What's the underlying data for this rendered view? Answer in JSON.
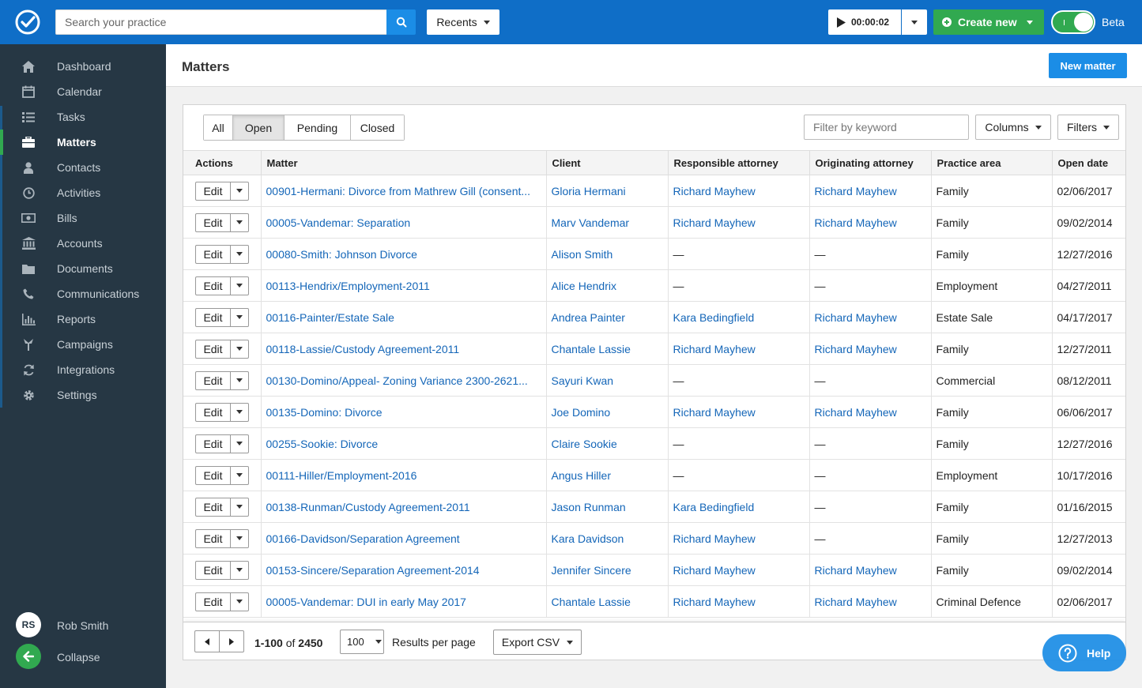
{
  "topbar": {
    "search_placeholder": "Search your practice",
    "recents_label": "Recents",
    "timer_value": "00:00:02",
    "create_label": "Create new",
    "beta_label": "Beta",
    "accent_color": "#0f6ec7"
  },
  "sidebar": {
    "items": [
      {
        "label": "Dashboard",
        "icon": "home-icon"
      },
      {
        "label": "Calendar",
        "icon": "calendar-icon"
      },
      {
        "label": "Tasks",
        "icon": "list-icon"
      },
      {
        "label": "Matters",
        "icon": "briefcase-icon",
        "active": true
      },
      {
        "label": "Contacts",
        "icon": "person-icon"
      },
      {
        "label": "Activities",
        "icon": "clock-icon"
      },
      {
        "label": "Bills",
        "icon": "money-icon"
      },
      {
        "label": "Accounts",
        "icon": "bank-icon"
      },
      {
        "label": "Documents",
        "icon": "folder-icon"
      },
      {
        "label": "Communications",
        "icon": "phone-icon"
      },
      {
        "label": "Reports",
        "icon": "bar-chart-icon"
      },
      {
        "label": "Campaigns",
        "icon": "campaign-icon"
      },
      {
        "label": "Integrations",
        "icon": "refresh-icon"
      },
      {
        "label": "Settings",
        "icon": "gear-icon"
      }
    ],
    "user_initials": "RS",
    "user_name": "Rob Smith",
    "collapse_label": "Collapse"
  },
  "header": {
    "title": "Matters",
    "new_matter_label": "New matter"
  },
  "filters": {
    "tabs": [
      "All",
      "Open",
      "Pending",
      "Closed"
    ],
    "active_tab": "Open",
    "keyword_placeholder": "Filter by keyword",
    "columns_label": "Columns",
    "filters_label": "Filters"
  },
  "table": {
    "headers": [
      "Actions",
      "Matter",
      "Client",
      "Responsible attorney",
      "Originating attorney",
      "Practice area",
      "Open date"
    ],
    "edit_label": "Edit",
    "rows": [
      {
        "matter": "00901-Hermani: Divorce from Mathrew Gill (consent...",
        "client": "Gloria Hermani",
        "responsible": "Richard Mayhew",
        "originating": "Richard Mayhew",
        "area": "Family",
        "date": "02/06/2017"
      },
      {
        "matter": "00005-Vandemar: Separation",
        "client": "Marv Vandemar",
        "responsible": "Richard Mayhew",
        "originating": "Richard Mayhew",
        "area": "Family",
        "date": "09/02/2014"
      },
      {
        "matter": "00080-Smith: Johnson Divorce",
        "client": "Alison Smith",
        "responsible": "—",
        "originating": "—",
        "area": "Family",
        "date": "12/27/2016"
      },
      {
        "matter": "00113-Hendrix/Employment-2011",
        "client": "Alice Hendrix",
        "responsible": "—",
        "originating": "—",
        "area": "Employment",
        "date": "04/27/2011"
      },
      {
        "matter": "00116-Painter/Estate Sale",
        "client": "Andrea Painter",
        "responsible": "Kara Bedingfield",
        "originating": "Richard Mayhew",
        "area": "Estate Sale",
        "date": "04/17/2017"
      },
      {
        "matter": "00118-Lassie/Custody Agreement-2011",
        "client": "Chantale Lassie",
        "responsible": "Richard Mayhew",
        "originating": "Richard Mayhew",
        "area": "Family",
        "date": "12/27/2011"
      },
      {
        "matter": "00130-Domino/Appeal- Zoning Variance 2300-2621...",
        "client": "Sayuri Kwan",
        "responsible": "—",
        "originating": "—",
        "area": "Commercial",
        "date": "08/12/2011"
      },
      {
        "matter": "00135-Domino: Divorce",
        "client": "Joe Domino",
        "responsible": "Richard Mayhew",
        "originating": "Richard Mayhew",
        "area": "Family",
        "date": "06/06/2017"
      },
      {
        "matter": "00255-Sookie: Divorce",
        "client": "Claire Sookie",
        "responsible": "—",
        "originating": "—",
        "area": "Family",
        "date": "12/27/2016"
      },
      {
        "matter": "00111-Hiller/Employment-2016",
        "client": "Angus Hiller",
        "responsible": "—",
        "originating": "—",
        "area": "Employment",
        "date": "10/17/2016"
      },
      {
        "matter": "00138-Runman/Custody Agreement-2011",
        "client": "Jason Runman",
        "responsible": "Kara Bedingfield",
        "originating": "—",
        "area": "Family",
        "date": "01/16/2015"
      },
      {
        "matter": "00166-Davidson/Separation Agreement",
        "client": "Kara Davidson",
        "responsible": "Richard Mayhew",
        "originating": "—",
        "area": "Family",
        "date": "12/27/2013"
      },
      {
        "matter": "00153-Sincere/Separation Agreement-2014",
        "client": "Jennifer Sincere",
        "responsible": "Richard Mayhew",
        "originating": "Richard Mayhew",
        "area": "Family",
        "date": "09/02/2014"
      },
      {
        "matter": "00005-Vandemar: DUI in early May 2017",
        "client": "Chantale Lassie",
        "responsible": "Richard Mayhew",
        "originating": "Richard Mayhew",
        "area": "Criminal Defence",
        "date": "02/06/2017"
      }
    ]
  },
  "pagination": {
    "range": "1-100",
    "of_label": "of",
    "total": "2450",
    "per_page": "100",
    "per_page_label": "Results per page",
    "export_label": "Export CSV"
  },
  "help_label": "Help"
}
